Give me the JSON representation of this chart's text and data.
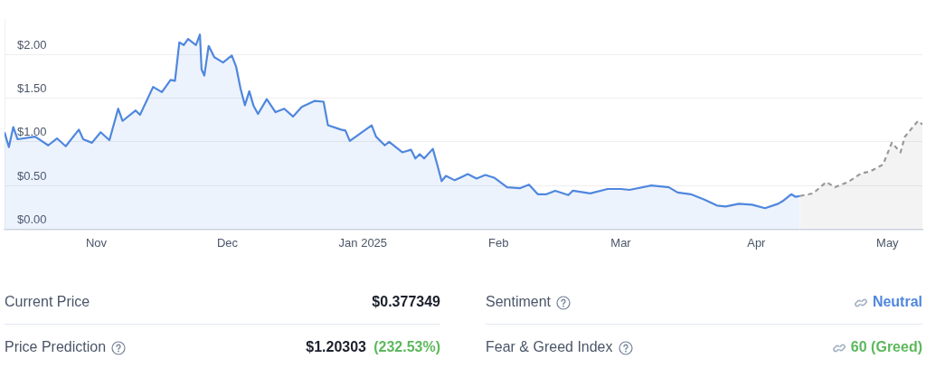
{
  "chart_data": [
    {
      "type": "area",
      "x": [
        "2024-10-11",
        "2024-10-12",
        "2024-10-13",
        "2024-10-14",
        "2024-10-18",
        "2024-10-21",
        "2024-10-23",
        "2024-10-25",
        "2024-10-28",
        "2024-10-29",
        "2024-10-31",
        "2024-11-02",
        "2024-11-04",
        "2024-11-06",
        "2024-11-07",
        "2024-11-10",
        "2024-11-11",
        "2024-11-14",
        "2024-11-16",
        "2024-11-18",
        "2024-11-19",
        "2024-11-20",
        "2024-11-21",
        "2024-11-22",
        "2024-11-23T19:00",
        "2024-11-24T17:00",
        "2024-11-25T02:00",
        "2024-11-25T17:00",
        "2024-11-26T17:00",
        "2024-11-28",
        "2024-11-30",
        "2024-12-02",
        "2024-12-03",
        "2024-12-04",
        "2024-12-05",
        "2024-12-06",
        "2024-12-07",
        "2024-12-08",
        "2024-12-10",
        "2024-12-12",
        "2024-12-14",
        "2024-12-16",
        "2024-12-18",
        "2024-12-21",
        "2024-12-23",
        "2024-12-24",
        "2024-12-27",
        "2024-12-28",
        "2024-12-29",
        "2025-01-03",
        "2025-01-04",
        "2025-01-06",
        "2025-01-07",
        "2025-01-10",
        "2025-01-12",
        "2025-01-13",
        "2025-01-14",
        "2025-01-15",
        "2025-01-17",
        "2025-01-18",
        "2025-01-19",
        "2025-01-20",
        "2025-01-22",
        "2025-01-25",
        "2025-01-27",
        "2025-01-29",
        "2025-01-31",
        "2025-02-03",
        "2025-02-06",
        "2025-02-08",
        "2025-02-10",
        "2025-02-12",
        "2025-02-14",
        "2025-02-17",
        "2025-02-18",
        "2025-02-22",
        "2025-02-26",
        "2025-03-01",
        "2025-03-03",
        "2025-03-08",
        "2025-03-12",
        "2025-03-14",
        "2025-03-17",
        "2025-03-20",
        "2025-03-23",
        "2025-03-25",
        "2025-03-28",
        "2025-03-31",
        "2025-04-03",
        "2025-04-06",
        "2025-04-07",
        "2025-04-09",
        "2025-04-10",
        "2025-04-11"
      ],
      "series": [
        {
          "color": "#4f87de",
          "line_style": "solid",
          "values": [
            1.11,
            0.94,
            1.17,
            1.03,
            1.06,
            0.96,
            1.04,
            0.95,
            1.14,
            1.03,
            0.99,
            1.11,
            1.02,
            1.38,
            1.24,
            1.36,
            1.31,
            1.63,
            1.57,
            1.71,
            1.7,
            2.14,
            2.11,
            2.18,
            2.11,
            2.23,
            1.83,
            1.76,
            2.1,
            1.97,
            1.91,
            1.99,
            1.86,
            1.61,
            1.42,
            1.58,
            1.41,
            1.32,
            1.49,
            1.34,
            1.38,
            1.29,
            1.4,
            1.47,
            1.46,
            1.19,
            1.14,
            1.13,
            1.01,
            1.19,
            1.06,
            0.96,
            1.0,
            0.88,
            0.91,
            0.81,
            0.86,
            0.81,
            0.92,
            0.74,
            0.55,
            0.61,
            0.56,
            0.63,
            0.58,
            0.62,
            0.59,
            0.48,
            0.47,
            0.51,
            0.4,
            0.4,
            0.44,
            0.39,
            0.44,
            0.41,
            0.46,
            0.46,
            0.45,
            0.5,
            0.48,
            0.42,
            0.4,
            0.34,
            0.27,
            0.26,
            0.29,
            0.28,
            0.24,
            0.29,
            0.32,
            0.4,
            0.37,
            0.38
          ]
        },
        {
          "color": "#999999",
          "line_style": "dashed",
          "x": [
            "2025-04-11",
            "2025-04-14",
            "2025-04-17",
            "2025-04-19",
            "2025-04-22",
            "2025-04-25",
            "2025-04-27",
            "2025-04-30",
            "2025-05-02",
            "2025-05-04",
            "2025-05-05",
            "2025-05-08",
            "2025-05-09"
          ],
          "values": [
            0.38,
            0.41,
            0.54,
            0.48,
            0.54,
            0.64,
            0.66,
            0.74,
            0.99,
            0.88,
            1.06,
            1.24,
            1.2
          ]
        }
      ],
      "xlim": [
        "2024-10-11",
        "2025-05-09"
      ],
      "xticks": [
        {
          "value": "2024-11-01",
          "label": "Nov"
        },
        {
          "value": "2024-12-01",
          "label": "Dec"
        },
        {
          "value": "2025-01-01",
          "label": "Jan 2025"
        },
        {
          "value": "2025-02-01",
          "label": "Feb"
        },
        {
          "value": "2025-03-01",
          "label": "Mar"
        },
        {
          "value": "2025-04-01",
          "label": "Apr"
        },
        {
          "value": "2025-05-01",
          "label": "May"
        }
      ],
      "ylim": [
        0,
        2.4
      ],
      "yticks": [
        {
          "value": 0,
          "label": "$0.00"
        },
        {
          "value": 0.5,
          "label": "$0.50"
        },
        {
          "value": 1,
          "label": "$1.00"
        },
        {
          "value": 1.5,
          "label": "$1.50"
        },
        {
          "value": 2,
          "label": "$2.00"
        }
      ],
      "grid": "y",
      "legend": false,
      "marker": "none"
    },
    {
      "type": "other",
      "annotations": [
        "Current Price",
        "$0.377349",
        "Sentiment",
        "Neutral",
        "Price Prediction",
        "$1.20303",
        "(232.53%)",
        "Fear & Greed Index",
        "60 (Greed)"
      ]
    }
  ]
}
